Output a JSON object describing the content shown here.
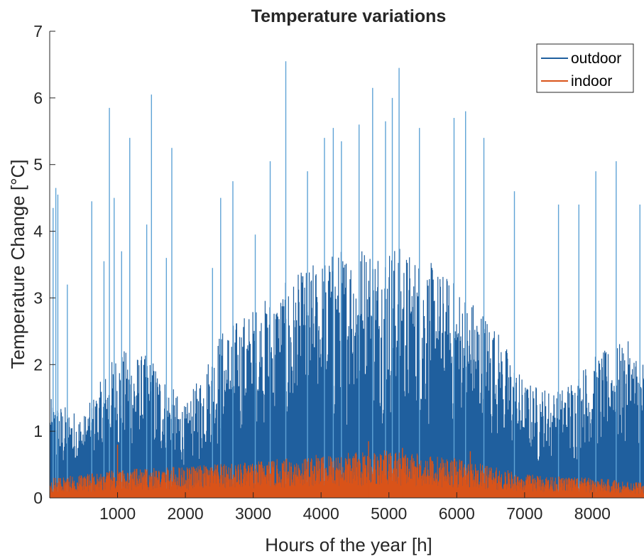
{
  "chart_data": {
    "type": "line",
    "title": "Temperature variations",
    "xlabel": "Hours of the year [h]",
    "ylabel": "Temperature Change [°C]",
    "xlim": [
      0,
      8760
    ],
    "ylim": [
      0,
      7
    ],
    "xticks": [
      "1000",
      "2000",
      "3000",
      "4000",
      "5000",
      "6000",
      "7000",
      "8000"
    ],
    "xtick_values": [
      1000,
      2000,
      3000,
      4000,
      5000,
      6000,
      7000,
      8000
    ],
    "yticks": [
      "0",
      "1",
      "2",
      "3",
      "4",
      "5",
      "6",
      "7"
    ],
    "ytick_values": [
      0,
      1,
      2,
      3,
      4,
      5,
      6,
      7
    ],
    "legend_position": "top-right",
    "grid": false,
    "series": [
      {
        "name": "outdoor",
        "color": "#1f5f9e",
        "light_color": "#5fa3d6",
        "peaks": [
          [
            50,
            4.35
          ],
          [
            90,
            4.65
          ],
          [
            120,
            4.55
          ],
          [
            260,
            3.2
          ],
          [
            620,
            4.45
          ],
          [
            800,
            3.55
          ],
          [
            880,
            5.85
          ],
          [
            950,
            4.5
          ],
          [
            1060,
            3.7
          ],
          [
            1180,
            5.4
          ],
          [
            1430,
            4.1
          ],
          [
            1500,
            6.05
          ],
          [
            1720,
            3.6
          ],
          [
            1800,
            5.25
          ],
          [
            2400,
            3.45
          ],
          [
            2520,
            4.5
          ],
          [
            2700,
            4.75
          ],
          [
            3030,
            3.95
          ],
          [
            3250,
            5.05
          ],
          [
            3480,
            6.55
          ],
          [
            3800,
            4.9
          ],
          [
            4050,
            5.4
          ],
          [
            4180,
            5.55
          ],
          [
            4300,
            5.35
          ],
          [
            4560,
            5.6
          ],
          [
            4760,
            6.15
          ],
          [
            4950,
            5.65
          ],
          [
            5050,
            6.0
          ],
          [
            5150,
            6.45
          ],
          [
            5450,
            5.55
          ],
          [
            5960,
            5.7
          ],
          [
            6130,
            5.8
          ],
          [
            6400,
            5.4
          ],
          [
            6850,
            4.6
          ],
          [
            7500,
            4.4
          ],
          [
            7800,
            4.4
          ],
          [
            8050,
            4.9
          ],
          [
            8350,
            5.05
          ],
          [
            8700,
            4.4
          ]
        ],
        "envelope": [
          [
            0,
            1.2
          ],
          [
            500,
            1.0
          ],
          [
            1000,
            1.8
          ],
          [
            1500,
            1.7
          ],
          [
            2000,
            1.1
          ],
          [
            2500,
            2.0
          ],
          [
            3000,
            2.3
          ],
          [
            3500,
            2.6
          ],
          [
            4000,
            2.9
          ],
          [
            4500,
            3.1
          ],
          [
            5000,
            3.1
          ],
          [
            5500,
            2.9
          ],
          [
            6000,
            2.6
          ],
          [
            6500,
            2.2
          ],
          [
            7000,
            1.4
          ],
          [
            7500,
            1.3
          ],
          [
            8000,
            1.7
          ],
          [
            8500,
            1.9
          ],
          [
            8760,
            1.7
          ]
        ]
      },
      {
        "name": "indoor",
        "color": "#d95319",
        "envelope": [
          [
            0,
            0.25
          ],
          [
            1000,
            0.35
          ],
          [
            2000,
            0.4
          ],
          [
            3000,
            0.45
          ],
          [
            4000,
            0.55
          ],
          [
            5000,
            0.6
          ],
          [
            6000,
            0.5
          ],
          [
            7000,
            0.3
          ],
          [
            8000,
            0.25
          ],
          [
            8760,
            0.2
          ]
        ],
        "peaks": [
          [
            1000,
            0.8
          ],
          [
            4700,
            0.85
          ],
          [
            5200,
            0.75
          ],
          [
            6200,
            0.7
          ]
        ]
      }
    ]
  }
}
